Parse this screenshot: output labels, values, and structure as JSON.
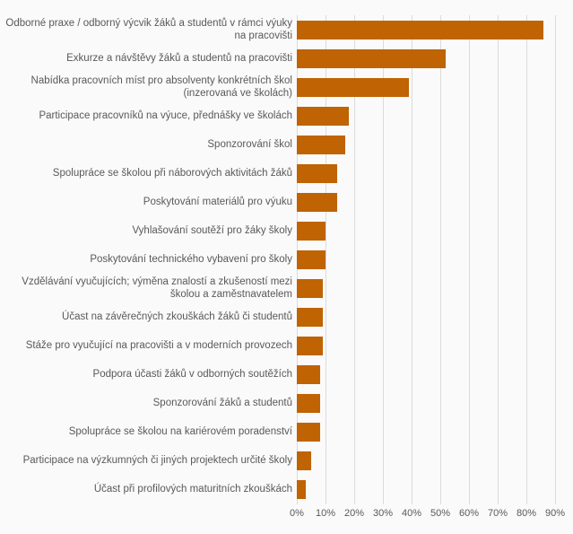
{
  "chart_data": {
    "type": "bar",
    "orientation": "horizontal",
    "title": "",
    "xlabel": "",
    "ylabel": "",
    "xlim": [
      0,
      90
    ],
    "x_tick_labels": [
      "0%",
      "10%",
      "20%",
      "30%",
      "40%",
      "50%",
      "60%",
      "70%",
      "80%",
      "90%"
    ],
    "grid": "vertical-major",
    "legend": "none",
    "categories": [
      "Odborné praxe / odborný výcvik žáků a studentů v rámci výuky na pracovišti",
      "Exkurze a návštěvy žáků a studentů na pracovišti",
      "Nabídka pracovních míst pro absolventy konkrétních škol (inzerovaná ve školách)",
      "Participace pracovníků na výuce, přednášky ve školách",
      "Sponzorování škol",
      "Spolupráce se školou při náborových aktivitách žáků",
      "Poskytování materiálů pro výuku",
      "Vyhlašování soutěží pro žáky školy",
      "Poskytování technického vybavení pro školy",
      "Vzdělávání vyučujících; výměna znalostí a zkušeností mezi školou a zaměstnavatelem",
      "Účast na závěrečných zkouškách žáků či studentů",
      "Stáže pro vyučující na pracovišti a v moderních provozech",
      "Podpora účasti žáků v odborných soutěžích",
      "Sponzorování žáků a studentů",
      "Spolupráce se školou na kariérovém poradenství",
      "Participace na výzkumných či jiných projektech určité školy",
      "Účast při profilových maturitních zkouškách"
    ],
    "values": [
      86,
      52,
      39,
      18,
      17,
      14,
      14,
      10,
      10,
      9,
      9,
      9,
      8,
      8,
      8,
      5,
      3
    ],
    "colors": {
      "bar": "#bf6303",
      "label_text": "#595959",
      "gridline": "#dbdbdb",
      "background": "#fafafa"
    }
  }
}
